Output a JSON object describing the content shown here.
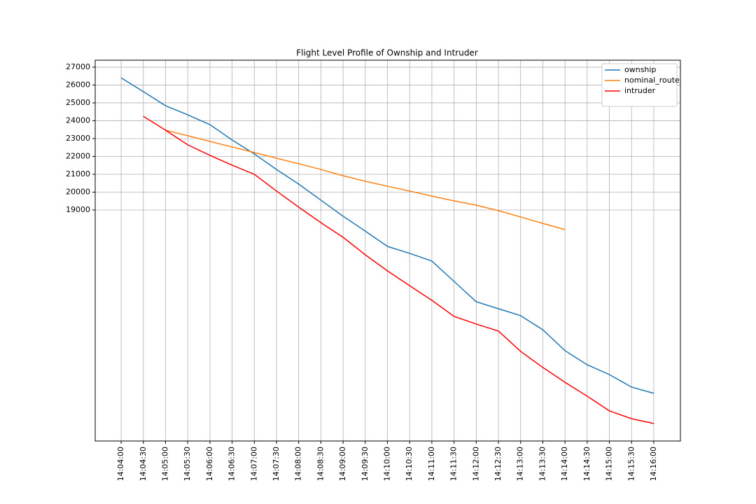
{
  "chart_data": {
    "type": "line",
    "title": "Flight Level Profile of Ownship and Intruder",
    "categories": [
      "14:04:00",
      "14:04:30",
      "14:05:00",
      "14:05:30",
      "14:06:00",
      "14:06:30",
      "14:07:00",
      "14:07:30",
      "14:08:00",
      "14:08:30",
      "14:09:00",
      "14:09:30",
      "14:10:00",
      "14:10:30",
      "14:11:00",
      "14:11:30",
      "14:12:00",
      "14:12:30",
      "14:13:00",
      "14:13:30",
      "14:14:00",
      "14:14:30",
      "14:15:00",
      "14:15:30",
      "14:16:00"
    ],
    "series": [
      {
        "name": "ownship",
        "color": "#1f77b4",
        "values": [
          26400,
          25630,
          24840,
          24330,
          23780,
          22920,
          22140,
          21270,
          20450,
          19550,
          18650,
          17820,
          16960,
          16570,
          16140,
          15000,
          13860,
          13470,
          13080,
          12290,
          11120,
          10330,
          9780,
          9080,
          8730
        ]
      },
      {
        "name": "nominal_route",
        "color": "#ff7f0e",
        "values": [
          null,
          null,
          23470,
          23160,
          22840,
          22530,
          22220,
          21900,
          21590,
          21270,
          20920,
          20610,
          20330,
          20060,
          19780,
          19510,
          19270,
          18960,
          18610,
          18250,
          17900,
          null,
          null,
          null,
          null
        ]
      },
      {
        "name": "intruder",
        "color": "#ff0000",
        "values": [
          null,
          24250,
          23470,
          22650,
          22060,
          21510,
          21000,
          20060,
          19160,
          18290,
          17470,
          16490,
          15590,
          14760,
          13940,
          13040,
          12610,
          12220,
          11080,
          10180,
          9350,
          8570,
          7750,
          7310,
          7040
        ]
      }
    ],
    "ylim": [
      6060,
      27390
    ],
    "yticks": [
      19000,
      20000,
      21000,
      22000,
      23000,
      24000,
      25000,
      26000,
      27000
    ],
    "grid": true,
    "legend": "upper right"
  }
}
